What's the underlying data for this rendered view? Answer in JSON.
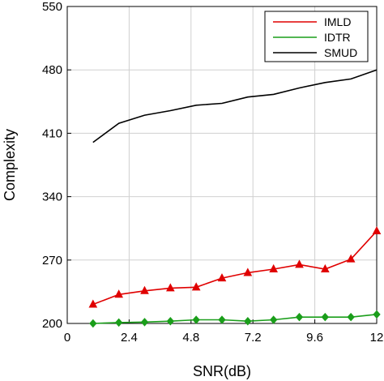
{
  "chart_data": {
    "type": "line",
    "title": "",
    "xlabel": "SNR(dB)",
    "ylabel": "Complexity",
    "xlim": [
      0,
      12
    ],
    "ylim": [
      200,
      550
    ],
    "x_ticks": [
      0,
      2.4,
      4.8,
      7.2,
      9.6,
      12
    ],
    "x_tick_labels": [
      "0",
      "2.4",
      "4.8",
      "7.2",
      "9.6",
      "12"
    ],
    "y_ticks": [
      200,
      270,
      340,
      410,
      480,
      550
    ],
    "y_tick_labels": [
      "200",
      "270",
      "340",
      "410",
      "480",
      "550"
    ],
    "grid": true,
    "legend": "top-right",
    "series": [
      {
        "name": "IMLD",
        "color": "#e00000",
        "marker": "triangle",
        "x": [
          1,
          2,
          3,
          4,
          5,
          6,
          7,
          8,
          9,
          10,
          11,
          12
        ],
        "values": [
          221,
          232,
          236,
          239,
          240,
          250,
          256,
          260,
          265,
          260,
          271,
          302
        ]
      },
      {
        "name": "IDTR",
        "color": "#1a9e1a",
        "marker": "diamond",
        "x": [
          1,
          2,
          3,
          4,
          5,
          6,
          7,
          8,
          9,
          10,
          11,
          12
        ],
        "values": [
          200,
          201,
          201.5,
          202.5,
          204,
          204,
          202.5,
          204,
          207,
          207,
          207,
          210
        ]
      },
      {
        "name": "SMUD",
        "color": "#000000",
        "marker": "none",
        "x": [
          1,
          2,
          3,
          4,
          5,
          6,
          7,
          8,
          9,
          10,
          11,
          12
        ],
        "values": [
          400,
          421,
          430,
          435,
          441,
          443,
          450,
          453,
          460,
          466,
          470,
          480
        ]
      }
    ]
  }
}
